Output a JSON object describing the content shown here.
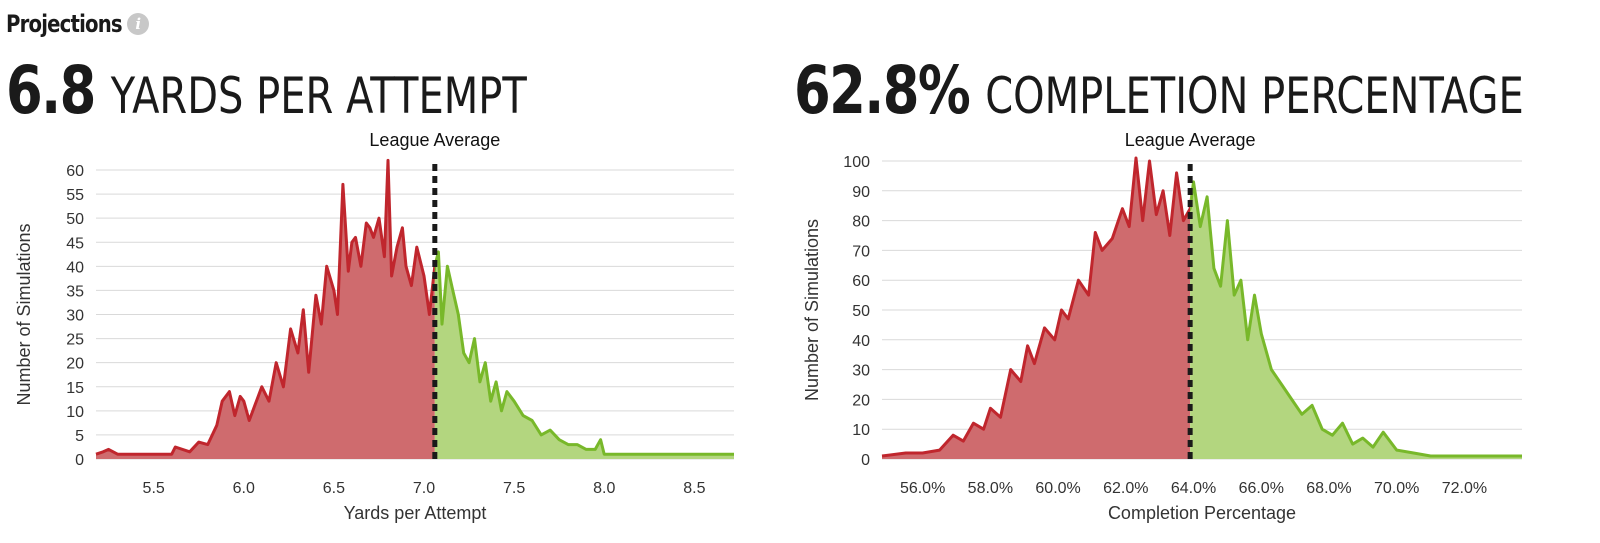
{
  "header": {
    "title": "Projections",
    "info_icon": "info-icon"
  },
  "colors": {
    "below": "#c0262d",
    "below_fill": "#cf6b6e",
    "above": "#78b82a",
    "above_fill": "#b3d67f",
    "grid": "#d9d9d9",
    "ref_line": "#1a1a1a"
  },
  "chart_data": [
    {
      "type": "area",
      "headline_value": "6.8",
      "headline_label": "YARDS PER ATTEMPT",
      "annotation": "League Average",
      "xlabel": "Yards per Attempt",
      "ylabel": "Number of Simulations",
      "xlim": [
        5.18,
        8.72
      ],
      "ylim": [
        0,
        60
      ],
      "x_ticks": [
        5.5,
        6.0,
        6.5,
        7.0,
        7.5,
        8.0,
        8.5
      ],
      "x_tick_labels": [
        "5.5",
        "6.0",
        "6.5",
        "7.0",
        "7.5",
        "8.0",
        "8.5"
      ],
      "y_ticks": [
        0,
        5,
        10,
        15,
        20,
        25,
        30,
        35,
        40,
        45,
        50,
        55,
        60
      ],
      "y_tick_labels": [
        "0",
        "5",
        "10",
        "15",
        "20",
        "25",
        "30",
        "35",
        "40",
        "45",
        "50",
        "55",
        "60"
      ],
      "reference_x": 7.06,
      "x": [
        5.18,
        5.22,
        5.25,
        5.3,
        5.4,
        5.5,
        5.6,
        5.62,
        5.7,
        5.75,
        5.8,
        5.85,
        5.88,
        5.92,
        5.95,
        5.98,
        6.0,
        6.03,
        6.06,
        6.1,
        6.14,
        6.18,
        6.22,
        6.26,
        6.3,
        6.33,
        6.36,
        6.4,
        6.43,
        6.46,
        6.5,
        6.52,
        6.55,
        6.58,
        6.6,
        6.62,
        6.65,
        6.68,
        6.7,
        6.72,
        6.75,
        6.78,
        6.8,
        6.82,
        6.85,
        6.88,
        6.9,
        6.93,
        6.96,
        7.0,
        7.03,
        7.06,
        7.08,
        7.1,
        7.13,
        7.16,
        7.19,
        7.22,
        7.25,
        7.28,
        7.31,
        7.34,
        7.37,
        7.4,
        7.43,
        7.46,
        7.5,
        7.55,
        7.6,
        7.65,
        7.7,
        7.75,
        7.8,
        7.85,
        7.9,
        7.95,
        7.98,
        8.0,
        8.1,
        8.3,
        8.5,
        8.72
      ],
      "y": [
        1,
        1.5,
        2,
        1,
        1,
        1,
        1,
        2.5,
        1.5,
        3.5,
        3,
        7,
        12,
        14,
        9,
        13,
        12,
        8,
        11,
        15,
        12,
        20,
        15,
        27,
        22,
        31,
        18,
        34,
        28,
        40,
        35,
        30,
        57,
        39,
        45,
        46,
        40,
        49,
        48,
        46,
        50,
        42,
        62,
        38,
        44,
        48,
        40,
        36,
        44,
        38,
        30,
        40,
        43,
        28,
        40,
        35,
        30,
        22,
        20,
        25,
        16,
        20,
        12,
        16,
        10,
        14,
        12,
        9,
        8,
        5,
        6,
        4,
        3,
        3,
        2,
        2,
        4,
        1,
        1,
        1,
        1,
        1
      ]
    },
    {
      "type": "area",
      "headline_value": "62.8%",
      "headline_label": "COMPLETION PERCENTAGE",
      "annotation": "League Average",
      "xlabel": "Completion Percentage",
      "ylabel": "Number of Simulations",
      "xlim": [
        54.8,
        73.7
      ],
      "ylim": [
        0,
        100
      ],
      "x_ticks": [
        56,
        58,
        60,
        62,
        64,
        66,
        68,
        70,
        72
      ],
      "x_tick_labels": [
        "56.0%",
        "58.0%",
        "60.0%",
        "62.0%",
        "64.0%",
        "66.0%",
        "68.0%",
        "70.0%",
        "72.0%"
      ],
      "y_ticks": [
        0,
        10,
        20,
        30,
        40,
        50,
        60,
        70,
        80,
        90,
        100
      ],
      "y_tick_labels": [
        "0",
        "10",
        "20",
        "30",
        "40",
        "50",
        "60",
        "70",
        "80",
        "90",
        "100"
      ],
      "reference_x": 63.9,
      "x": [
        54.8,
        55.5,
        56.0,
        56.5,
        56.9,
        57.2,
        57.5,
        57.8,
        58.0,
        58.3,
        58.6,
        58.9,
        59.1,
        59.3,
        59.6,
        59.9,
        60.1,
        60.3,
        60.6,
        60.9,
        61.1,
        61.3,
        61.6,
        61.9,
        62.1,
        62.3,
        62.5,
        62.7,
        62.9,
        63.1,
        63.3,
        63.5,
        63.7,
        63.9,
        64.0,
        64.2,
        64.4,
        64.6,
        64.8,
        65.0,
        65.2,
        65.4,
        65.6,
        65.8,
        66.0,
        66.3,
        66.6,
        66.9,
        67.2,
        67.5,
        67.8,
        68.1,
        68.4,
        68.7,
        69.0,
        69.3,
        69.6,
        70.0,
        70.5,
        71.0,
        72.0,
        73.7
      ],
      "y": [
        1,
        2,
        2,
        3,
        8,
        6,
        12,
        10,
        17,
        14,
        30,
        26,
        38,
        32,
        44,
        40,
        50,
        47,
        60,
        55,
        76,
        70,
        74,
        84,
        78,
        101,
        80,
        100,
        82,
        90,
        75,
        96,
        80,
        84,
        93,
        78,
        88,
        64,
        58,
        80,
        55,
        60,
        40,
        55,
        42,
        30,
        25,
        20,
        15,
        18,
        10,
        8,
        12,
        5,
        7,
        4,
        9,
        3,
        2,
        1,
        1,
        1
      ]
    }
  ]
}
